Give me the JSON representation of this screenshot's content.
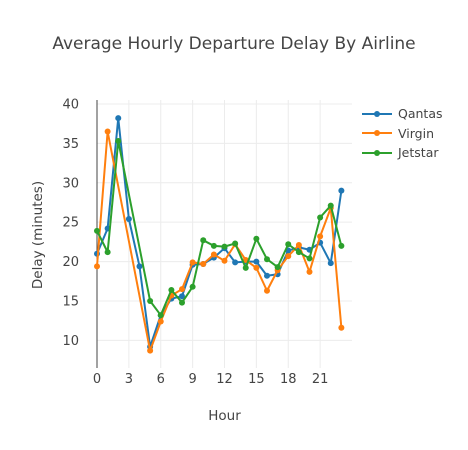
{
  "chart_data": {
    "type": "line",
    "title": "Average Hourly Departure Delay By Airline",
    "xlabel": "Hour",
    "ylabel": "Delay (minutes)",
    "xlim": [
      0,
      24
    ],
    "ylim": [
      6.5,
      40.5
    ],
    "x_ticks": [
      "0",
      "3",
      "6",
      "9",
      "12",
      "15",
      "18",
      "21"
    ],
    "y_ticks": [
      "10",
      "15",
      "20",
      "25",
      "30",
      "35",
      "40"
    ],
    "grid": true,
    "legend_position": "top-right",
    "series": [
      {
        "name": "Qantas",
        "color": "#1f77b4",
        "points": [
          [
            0,
            21
          ],
          [
            1,
            24.2
          ],
          [
            2,
            38.2
          ],
          [
            3,
            25.4
          ],
          [
            4,
            19.4
          ],
          [
            5,
            9.2
          ],
          [
            6,
            13.2
          ],
          [
            7,
            15.3
          ],
          [
            8,
            15.6
          ],
          [
            9,
            19.6
          ],
          [
            10,
            19.7
          ],
          [
            11,
            20.5
          ],
          [
            12,
            21.7
          ],
          [
            13,
            19.9
          ],
          [
            14,
            20
          ],
          [
            15,
            20
          ],
          [
            16,
            18.2
          ],
          [
            17,
            18.4
          ],
          [
            18,
            21.4
          ],
          [
            19,
            21.8
          ],
          [
            20,
            21.5
          ],
          [
            21,
            22.4
          ],
          [
            22,
            19.8
          ],
          [
            23,
            29
          ]
        ]
      },
      {
        "name": "Virgin",
        "color": "#ff7f0e",
        "points": [
          [
            0,
            19.4
          ],
          [
            1,
            36.5
          ],
          [
            5,
            8.7
          ],
          [
            6,
            12.4
          ],
          [
            7,
            15.7
          ],
          [
            8,
            16.5
          ],
          [
            9,
            19.9
          ],
          [
            10,
            19.7
          ],
          [
            11,
            20.9
          ],
          [
            12,
            20.1
          ],
          [
            13,
            22.2
          ],
          [
            14,
            20.2
          ],
          [
            15,
            19.2
          ],
          [
            16,
            16.3
          ],
          [
            17,
            18.9
          ],
          [
            18,
            20.7
          ],
          [
            19,
            22.1
          ],
          [
            20,
            18.7
          ],
          [
            21,
            23.2
          ],
          [
            22,
            26.8
          ],
          [
            23,
            11.6
          ]
        ]
      },
      {
        "name": "Jetstar",
        "color": "#2ca02c",
        "points": [
          [
            0,
            23.9
          ],
          [
            1,
            21.2
          ],
          [
            2,
            35.3
          ],
          [
            5,
            15
          ],
          [
            6,
            13.2
          ],
          [
            7,
            16.4
          ],
          [
            8,
            14.8
          ],
          [
            9,
            16.8
          ],
          [
            10,
            22.7
          ],
          [
            11,
            22
          ],
          [
            12,
            21.9
          ],
          [
            13,
            22.3
          ],
          [
            14,
            19.2
          ],
          [
            15,
            22.9
          ],
          [
            16,
            20.3
          ],
          [
            17,
            19.3
          ],
          [
            18,
            22.2
          ],
          [
            19,
            21.2
          ],
          [
            20,
            20.4
          ],
          [
            21,
            25.6
          ],
          [
            22,
            27.1
          ],
          [
            23,
            22
          ]
        ]
      }
    ]
  }
}
